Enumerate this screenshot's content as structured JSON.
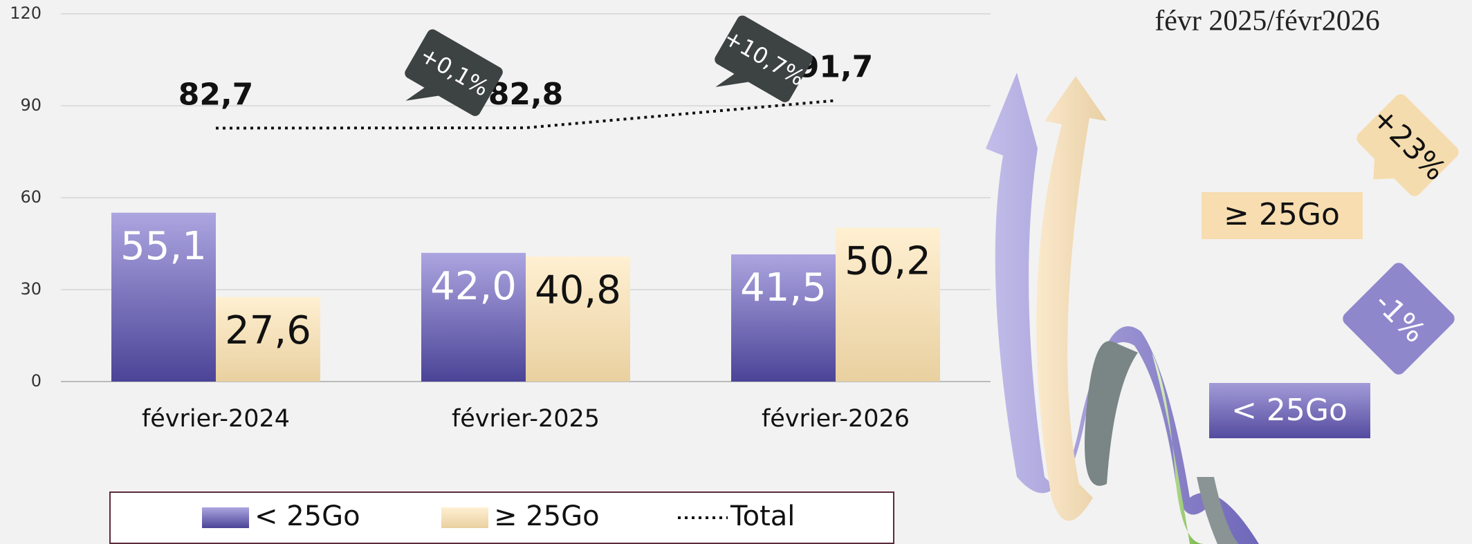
{
  "chart_data": {
    "type": "bar",
    "categories": [
      "février-2024",
      "février-2025",
      "février-2026"
    ],
    "series": [
      {
        "name": "< 25Go",
        "color": "#8a82c9",
        "gradient": [
          "#aca5e0",
          "#4b4497"
        ],
        "values": [
          55.1,
          42.0,
          41.5
        ],
        "value_labels": [
          "55,1",
          "42,0",
          "41,5"
        ],
        "label_color": "#ffffff"
      },
      {
        "name": "≥ 25Go",
        "color": "#f5dcae",
        "gradient": [
          "#fff0d2",
          "#e9d0a0"
        ],
        "values": [
          27.6,
          40.8,
          50.2
        ],
        "value_labels": [
          "27,6",
          "40,8",
          "50,2"
        ],
        "label_color": "#111111"
      },
      {
        "name": "Total",
        "type": "line",
        "color": "#111111",
        "values": [
          82.7,
          82.8,
          91.7
        ],
        "value_labels": [
          "82,7",
          "82,8",
          "91,7"
        ]
      }
    ],
    "annotations": [
      {
        "text": "+0,1%"
      },
      {
        "text": "+10,7%"
      }
    ],
    "ylim": [
      0,
      120
    ],
    "yticks": [
      0,
      30,
      60,
      90,
      120
    ],
    "grid": true,
    "legend": "bottom"
  },
  "side_panel": {
    "title": "févr 2025/févr2026",
    "callouts": [
      {
        "change": "+23%",
        "label": "≥ 25Go"
      },
      {
        "change": "-1%",
        "label": "< 25Go"
      }
    ]
  }
}
